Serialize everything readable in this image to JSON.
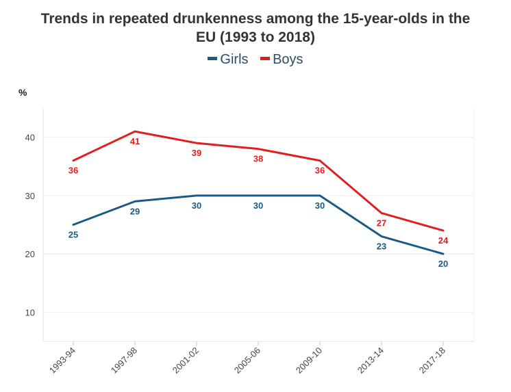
{
  "chart_data": {
    "type": "line",
    "title_line1": "Trends in repeated drunkenness among the 15-year-olds in the",
    "title_line2": "EU (1993 to 2018)",
    "ylabel": "%",
    "categories": [
      "1993-94",
      "1997-98",
      "2001-02",
      "2005-06",
      "2009-10",
      "2013-14",
      "2017-18"
    ],
    "yticks": [
      10,
      20,
      30,
      40
    ],
    "ylim": [
      5,
      45
    ],
    "grid": true,
    "legend_position": "top-center",
    "series": [
      {
        "name": "Girls",
        "color": "#1a5a85",
        "values": [
          25,
          29,
          30,
          30,
          30,
          23,
          20
        ]
      },
      {
        "name": "Boys",
        "color": "#e02020",
        "values": [
          36,
          41,
          39,
          38,
          36,
          27,
          24
        ]
      }
    ]
  }
}
